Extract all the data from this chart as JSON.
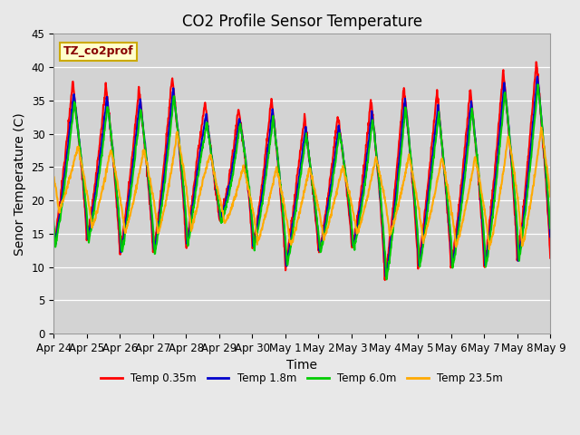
{
  "title": "CO2 Profile Sensor Temperature",
  "xlabel": "Time",
  "ylabel": "Senor Temperature (C)",
  "ylim": [
    0,
    45
  ],
  "yticks": [
    0,
    5,
    10,
    15,
    20,
    25,
    30,
    35,
    40,
    45
  ],
  "xtick_labels": [
    "Apr 24",
    "Apr 25",
    "Apr 26",
    "Apr 27",
    "Apr 28",
    "Apr 29",
    "Apr 30",
    "May 1",
    "May 2",
    "May 3",
    "May 4",
    "May 5",
    "May 6",
    "May 7",
    "May 8",
    "May 9"
  ],
  "legend_label": "TZ_co2prof",
  "legend_box_color": "#ffffcc",
  "legend_box_edge": "#ccaa00",
  "series_labels": [
    "Temp 0.35m",
    "Temp 1.8m",
    "Temp 6.0m",
    "Temp 23.5m"
  ],
  "series_colors": [
    "#ff0000",
    "#0000cc",
    "#00cc00",
    "#ffaa00"
  ],
  "series_linewidths": [
    1.5,
    1.5,
    1.5,
    1.5
  ],
  "background_color": "#e8e8e8",
  "plot_bg_color": "#d3d3d3",
  "title_fontsize": 12,
  "axis_fontsize": 10,
  "tick_fontsize": 8.5
}
